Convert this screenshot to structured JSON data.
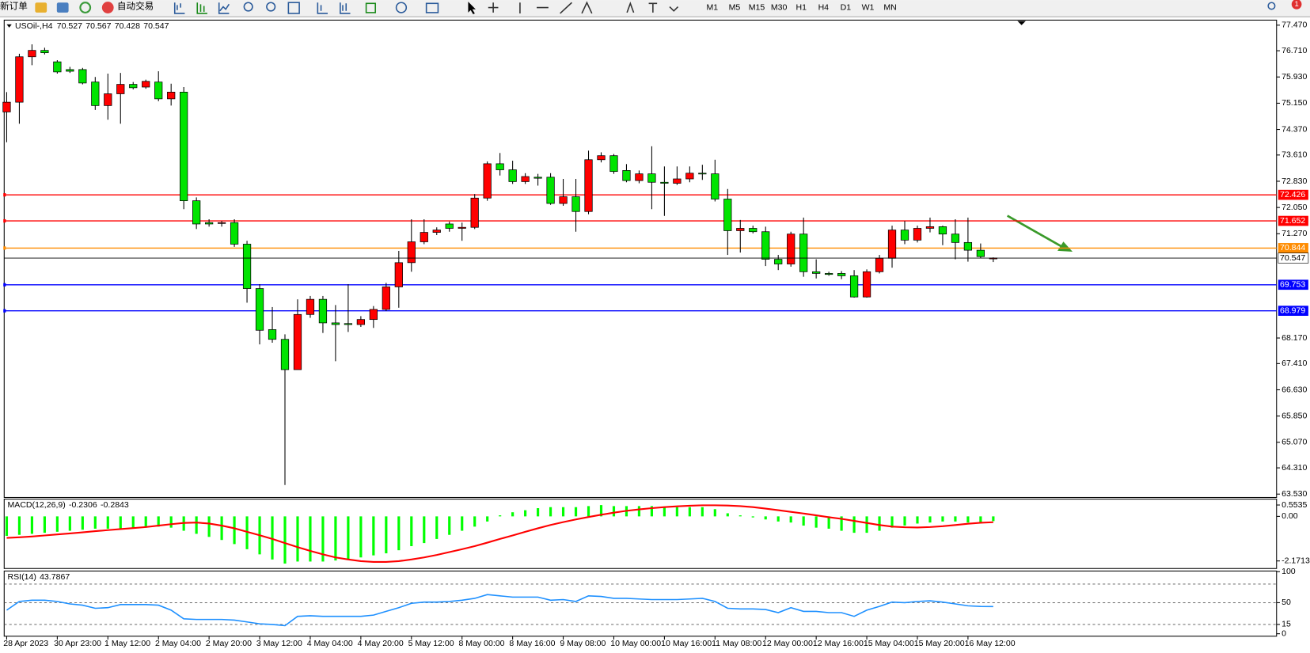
{
  "toolbar": {
    "new_order": "新订单",
    "auto_trading": "自动交易",
    "timeframes": [
      "M1",
      "M5",
      "M15",
      "M30",
      "H1",
      "H4",
      "D1",
      "W1",
      "MN"
    ],
    "badge": "1"
  },
  "chart_data": [
    {
      "type": "candlestick",
      "title": "USOil-,H4",
      "categories": [
        "28 Apr 2023",
        null,
        null,
        null,
        "30 Apr 23:00",
        null,
        null,
        null,
        "1 May 12:00",
        null,
        null,
        null,
        "2 May 04:00",
        null,
        null,
        null,
        "2 May 20:00",
        null,
        null,
        null,
        "3 May 12:00",
        null,
        null,
        null,
        "4 May 04:00",
        null,
        null,
        null,
        "4 May 20:00",
        null,
        null,
        null,
        "5 May 12:00",
        null,
        null,
        null,
        "8 May 00:00",
        null,
        null,
        null,
        "8 May 16:00",
        null,
        null,
        null,
        "9 May 08:00",
        null,
        null,
        null,
        "10 May 00:00",
        null,
        null,
        null,
        "10 May 16:00",
        null,
        null,
        null,
        "11 May 08:00",
        null,
        null,
        null,
        "12 May 00:00",
        null,
        null,
        null,
        "12 May 16:00",
        null,
        null,
        null,
        "15 May 04:00",
        null,
        null,
        null,
        "15 May 20:00",
        null,
        null,
        null,
        "16 May 12:00",
        null,
        null
      ],
      "open": [
        74.89,
        75.18,
        76.53,
        76.72,
        76.38,
        76.15,
        76.15,
        75.78,
        75.08,
        75.43,
        75.71,
        75.63,
        75.78,
        75.28,
        75.48,
        72.25,
        71.6,
        71.58,
        71.6,
        70.96,
        69.64,
        68.42,
        68.13,
        67.23,
        68.87,
        69.32,
        68.62,
        68.6,
        68.57,
        68.72,
        69.02,
        69.69,
        70.41,
        71.03,
        71.31,
        71.56,
        71.43,
        71.46,
        72.33,
        73.35,
        73.17,
        72.82,
        72.95,
        72.95,
        72.17,
        72.37,
        71.93,
        73.47,
        73.59,
        73.15,
        72.85,
        73.05,
        72.8,
        72.77,
        72.9,
        73.07,
        73.05,
        72.3,
        71.36,
        71.43,
        71.33,
        70.51,
        70.37,
        71.26,
        70.14,
        70.09,
        70.09,
        70.02,
        69.39,
        70.14,
        70.54,
        71.38,
        71.08,
        71.43,
        71.48,
        71.26,
        71.01,
        70.78,
        70.527
      ],
      "high": [
        75.48,
        76.62,
        76.9,
        76.8,
        76.43,
        76.23,
        76.2,
        75.93,
        76.03,
        76.05,
        75.78,
        75.85,
        76.1,
        75.73,
        75.63,
        72.35,
        71.7,
        71.65,
        71.7,
        71.06,
        69.77,
        69.09,
        68.28,
        69.32,
        69.42,
        69.42,
        69.15,
        69.77,
        68.82,
        69.12,
        69.81,
        70.76,
        71.7,
        71.7,
        71.46,
        71.63,
        71.6,
        72.45,
        73.42,
        73.67,
        73.44,
        73.07,
        73.05,
        73.07,
        72.9,
        72.9,
        73.74,
        73.69,
        73.64,
        73.34,
        73.15,
        73.87,
        73.27,
        73.27,
        73.27,
        73.32,
        73.47,
        72.6,
        71.68,
        71.51,
        71.48,
        70.64,
        71.33,
        71.75,
        70.51,
        70.14,
        70.16,
        70.19,
        70.21,
        70.64,
        71.51,
        71.65,
        71.51,
        71.75,
        71.51,
        71.7,
        71.75,
        70.98,
        70.567
      ],
      "low": [
        73.99,
        74.54,
        76.28,
        76.6,
        76.03,
        76.05,
        75.71,
        74.95,
        74.66,
        74.54,
        75.56,
        75.58,
        75.21,
        75.08,
        72.0,
        71.41,
        71.48,
        71.48,
        70.88,
        69.22,
        67.98,
        68.03,
        63.8,
        67.23,
        68.77,
        68.32,
        67.48,
        68.35,
        68.5,
        68.47,
        68.97,
        69.07,
        70.14,
        70.96,
        71.23,
        71.33,
        71.06,
        71.41,
        72.25,
        73.0,
        72.75,
        72.75,
        72.7,
        72.13,
        72.1,
        71.33,
        71.85,
        73.39,
        73.05,
        72.8,
        72.77,
        72.0,
        71.8,
        72.72,
        72.8,
        72.87,
        72.23,
        70.64,
        70.71,
        71.28,
        70.31,
        70.19,
        70.29,
        69.99,
        69.94,
        70.02,
        69.92,
        69.37,
        69.37,
        70.09,
        70.26,
        70.96,
        71.01,
        71.31,
        70.93,
        70.51,
        70.44,
        70.54,
        70.428
      ],
      "close": [
        75.18,
        76.53,
        76.72,
        76.65,
        76.08,
        76.1,
        75.75,
        75.08,
        75.43,
        75.71,
        75.61,
        75.8,
        75.28,
        75.48,
        72.25,
        71.56,
        71.56,
        71.6,
        70.96,
        69.64,
        68.4,
        68.13,
        67.23,
        68.87,
        69.32,
        68.62,
        68.57,
        68.57,
        68.72,
        69.02,
        69.69,
        70.41,
        71.03,
        71.31,
        71.38,
        71.43,
        71.46,
        72.33,
        73.35,
        73.17,
        72.82,
        72.97,
        72.92,
        72.17,
        72.37,
        71.93,
        73.47,
        73.59,
        73.12,
        72.85,
        73.05,
        72.8,
        72.77,
        72.9,
        73.07,
        73.05,
        72.3,
        71.36,
        71.43,
        71.33,
        70.51,
        70.37,
        71.26,
        70.14,
        70.09,
        70.06,
        70.02,
        69.39,
        70.14,
        70.54,
        71.38,
        71.08,
        71.43,
        71.48,
        71.26,
        71.01,
        70.78,
        70.59,
        70.547
      ],
      "up_color": "#ff0000",
      "down_color": "#00e400",
      "ylim": [
        63.43,
        77.62
      ],
      "yticks": [
        {
          "value": 77.47,
          "label": "77.470"
        },
        {
          "value": 76.71,
          "label": "76.710"
        },
        {
          "value": 75.93,
          "label": "75.930"
        },
        {
          "value": 75.15,
          "label": "75.150"
        },
        {
          "value": 74.37,
          "label": "74.370"
        },
        {
          "value": 73.61,
          "label": "73.610"
        },
        {
          "value": 72.83,
          "label": "72.830"
        },
        {
          "value": 72.05,
          "label": "72.050"
        },
        {
          "value": 71.27,
          "label": "71.270"
        },
        {
          "value": 68.17,
          "label": "68.170"
        },
        {
          "value": 67.41,
          "label": "67.410"
        },
        {
          "value": 66.63,
          "label": "66.630"
        },
        {
          "value": 65.85,
          "label": "65.850"
        },
        {
          "value": 65.07,
          "label": "65.070"
        },
        {
          "value": 64.31,
          "label": "64.310"
        },
        {
          "value": 63.53,
          "label": "63.530"
        }
      ],
      "levels": [
        {
          "value": 72.426,
          "color": "#ff0000"
        },
        {
          "value": 71.652,
          "color": "#ff0000"
        },
        {
          "value": 70.844,
          "color": "#ff8c00"
        },
        {
          "value": 69.753,
          "color": "#0000ff"
        },
        {
          "value": 68.979,
          "color": "#0000ff"
        }
      ]
    },
    {
      "type": "macd",
      "title": "MACD(12,26,9)",
      "color": "#00ff00",
      "signal_color": "#ff0000",
      "values": [
        -0.95,
        -0.9,
        -0.85,
        -0.8,
        -0.75,
        -0.7,
        -0.65,
        -0.6,
        -0.6,
        -0.6,
        -0.55,
        -0.55,
        -0.5,
        -0.55,
        -0.7,
        -0.85,
        -1.0,
        -1.15,
        -1.35,
        -1.6,
        -1.85,
        -2.1,
        -2.3,
        -2.2,
        -2.2,
        -2.2,
        -2.15,
        -2.1,
        -2.0,
        -1.9,
        -1.8,
        -1.65,
        -1.45,
        -1.3,
        -1.1,
        -0.9,
        -0.7,
        -0.5,
        -0.25,
        0.05,
        0.2,
        0.3,
        0.4,
        0.45,
        0.45,
        0.45,
        0.5,
        0.55,
        0.5,
        0.5,
        0.5,
        0.5,
        0.45,
        0.45,
        0.45,
        0.45,
        0.35,
        0.15,
        0.05,
        -0.05,
        -0.15,
        -0.25,
        -0.3,
        -0.45,
        -0.55,
        -0.6,
        -0.7,
        -0.8,
        -0.8,
        -0.7,
        -0.55,
        -0.45,
        -0.35,
        -0.3,
        -0.25,
        -0.25,
        -0.3,
        -0.3,
        -0.2306
      ],
      "signal": [
        -1.05,
        -1.02,
        -0.98,
        -0.93,
        -0.88,
        -0.83,
        -0.78,
        -0.72,
        -0.67,
        -0.62,
        -0.57,
        -0.52,
        -0.45,
        -0.38,
        -0.32,
        -0.3,
        -0.35,
        -0.45,
        -0.58,
        -0.75,
        -0.92,
        -1.1,
        -1.3,
        -1.5,
        -1.68,
        -1.85,
        -2.0,
        -2.1,
        -2.18,
        -2.22,
        -2.22,
        -2.18,
        -2.1,
        -2.0,
        -1.88,
        -1.74,
        -1.6,
        -1.45,
        -1.28,
        -1.1,
        -0.93,
        -0.75,
        -0.58,
        -0.42,
        -0.28,
        -0.15,
        -0.03,
        0.08,
        0.18,
        0.27,
        0.34,
        0.4,
        0.45,
        0.49,
        0.52,
        0.54,
        0.54,
        0.53,
        0.5,
        0.45,
        0.38,
        0.3,
        0.22,
        0.14,
        0.05,
        -0.04,
        -0.12,
        -0.22,
        -0.32,
        -0.42,
        -0.5,
        -0.53,
        -0.54,
        -0.52,
        -0.48,
        -0.42,
        -0.36,
        -0.31,
        -0.2843
      ],
      "ylim": [
        -2.54,
        0.84
      ],
      "yticks": [
        0.5535,
        {
          "value": 0,
          "label": "0.00"
        },
        -2.1713
      ]
    },
    {
      "type": "line",
      "title": "RSI(14)",
      "color": "#1e90ff",
      "values": [
        38,
        52,
        54,
        54,
        52,
        48,
        46,
        41,
        42,
        47,
        47,
        47,
        46,
        38,
        24,
        23,
        23,
        23,
        22,
        19,
        16,
        15,
        13,
        28,
        29,
        28,
        28,
        28,
        28,
        30,
        36,
        42,
        49,
        51,
        51,
        52,
        54,
        57,
        63,
        61,
        59,
        59,
        59,
        54,
        55,
        52,
        61,
        60,
        57,
        57,
        56,
        55,
        55,
        55,
        56,
        57,
        52,
        41,
        40,
        40,
        39,
        34,
        42,
        36,
        36,
        34,
        34,
        28,
        38,
        44,
        51,
        50,
        52,
        53,
        51,
        48,
        45,
        44,
        43.7867
      ],
      "ylim": [
        -4,
        101
      ],
      "yticks": [
        100,
        50,
        15,
        0
      ],
      "levels": [
        80,
        50,
        15
      ]
    }
  ]
}
